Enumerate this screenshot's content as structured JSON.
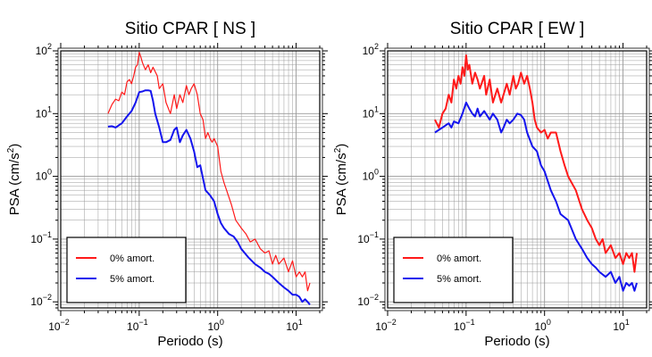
{
  "chart_data": [
    {
      "type": "line",
      "title": "Sitio CPAR [ NS ]",
      "xlabel": "Periodo (s)",
      "ylabel_main": "PSA (cm/s",
      "ylabel_sup": "2",
      "ylabel_close": ")",
      "xscale": "log",
      "yscale": "log",
      "xlim": [
        0.01,
        20
      ],
      "ylim": [
        0.008,
        100
      ],
      "grid": true,
      "legend_placement": "bottom-left",
      "x_ticks": [
        {
          "value": 0.01,
          "base": "10",
          "exp": "−2"
        },
        {
          "value": 0.1,
          "base": "10",
          "exp": "−1"
        },
        {
          "value": 1,
          "base": "10",
          "exp": "0"
        },
        {
          "value": 10,
          "base": "10",
          "exp": "1"
        }
      ],
      "y_ticks": [
        {
          "value": 0.01,
          "base": "10",
          "exp": "−2"
        },
        {
          "value": 0.1,
          "base": "10",
          "exp": "−1"
        },
        {
          "value": 1,
          "base": "10",
          "exp": "0"
        },
        {
          "value": 10,
          "base": "10",
          "exp": "1"
        },
        {
          "value": 100,
          "base": "10",
          "exp": "2"
        }
      ],
      "series": [
        {
          "name": "0% amort.",
          "color": "#ff1a1a",
          "x": [
            0.04,
            0.045,
            0.05,
            0.055,
            0.06,
            0.065,
            0.07,
            0.075,
            0.08,
            0.085,
            0.09,
            0.095,
            0.1,
            0.105,
            0.11,
            0.12,
            0.13,
            0.14,
            0.15,
            0.17,
            0.18,
            0.2,
            0.22,
            0.25,
            0.28,
            0.3,
            0.33,
            0.36,
            0.4,
            0.43,
            0.46,
            0.5,
            0.55,
            0.6,
            0.65,
            0.7,
            0.75,
            0.8,
            0.85,
            0.9,
            1.0,
            1.1,
            1.2,
            1.3,
            1.5,
            1.7,
            2.0,
            2.3,
            2.6,
            3.0,
            3.5,
            4.0,
            4.5,
            5.0,
            5.5,
            6.0,
            7.0,
            8.0,
            9.0,
            10.0,
            11.0,
            12.0,
            13.0,
            14.0,
            15.0
          ],
          "y": [
            10,
            14,
            17,
            16,
            22,
            20,
            32,
            35,
            30,
            40,
            55,
            60,
            95,
            80,
            65,
            50,
            60,
            45,
            55,
            40,
            25,
            30,
            15,
            10,
            20,
            12,
            20,
            15,
            28,
            20,
            25,
            30,
            20,
            10,
            8,
            4,
            5,
            4,
            3.5,
            4,
            3,
            1.2,
            0.8,
            0.6,
            0.35,
            0.2,
            0.15,
            0.12,
            0.09,
            0.1,
            0.07,
            0.06,
            0.065,
            0.04,
            0.055,
            0.04,
            0.05,
            0.03,
            0.045,
            0.025,
            0.03,
            0.025,
            0.03,
            0.015,
            0.02
          ]
        },
        {
          "name": "5% amort.",
          "color": "#1414ee",
          "x": [
            0.04,
            0.045,
            0.05,
            0.055,
            0.06,
            0.07,
            0.08,
            0.09,
            0.1,
            0.11,
            0.12,
            0.13,
            0.14,
            0.15,
            0.16,
            0.18,
            0.2,
            0.22,
            0.25,
            0.28,
            0.3,
            0.33,
            0.36,
            0.4,
            0.45,
            0.5,
            0.55,
            0.6,
            0.7,
            0.8,
            0.9,
            1.0,
            1.1,
            1.2,
            1.4,
            1.6,
            1.8,
            2.0,
            2.5,
            3.0,
            3.5,
            4.0,
            4.5,
            5.0,
            6.0,
            7.0,
            8.0,
            9.0,
            10.0,
            11.0,
            12.0,
            13.0,
            14.0,
            15.0
          ],
          "y": [
            6.2,
            6.3,
            6.0,
            6.5,
            7.0,
            9.0,
            11.0,
            15.0,
            22.0,
            22.5,
            23.5,
            23.5,
            23.0,
            16.0,
            10.0,
            6.0,
            3.5,
            3.5,
            3.8,
            5.5,
            6.0,
            3.5,
            4.5,
            5.5,
            4.0,
            2.5,
            1.4,
            1.5,
            0.6,
            0.5,
            0.4,
            0.25,
            0.18,
            0.15,
            0.12,
            0.11,
            0.09,
            0.07,
            0.05,
            0.04,
            0.035,
            0.03,
            0.028,
            0.025,
            0.02,
            0.017,
            0.015,
            0.013,
            0.013,
            0.012,
            0.01,
            0.011,
            0.01,
            0.009
          ]
        }
      ]
    },
    {
      "type": "line",
      "title": "Sitio CPAR [ EW ]",
      "xlabel": "Periodo (s)",
      "ylabel_main": "PSA (cm/s",
      "ylabel_sup": "2",
      "ylabel_close": ")",
      "xscale": "log",
      "yscale": "log",
      "xlim": [
        0.01,
        20
      ],
      "ylim": [
        0.008,
        100
      ],
      "grid": true,
      "legend_placement": "bottom-left",
      "x_ticks": [
        {
          "value": 0.01,
          "base": "10",
          "exp": "−2"
        },
        {
          "value": 0.1,
          "base": "10",
          "exp": "−1"
        },
        {
          "value": 1,
          "base": "10",
          "exp": "0"
        },
        {
          "value": 10,
          "base": "10",
          "exp": "1"
        }
      ],
      "y_ticks": [
        {
          "value": 0.01,
          "base": "10",
          "exp": "−2"
        },
        {
          "value": 0.1,
          "base": "10",
          "exp": "−1"
        },
        {
          "value": 1,
          "base": "10",
          "exp": "0"
        },
        {
          "value": 10,
          "base": "10",
          "exp": "1"
        },
        {
          "value": 100,
          "base": "10",
          "exp": "2"
        }
      ],
      "series": [
        {
          "name": "0% amort.",
          "color": "#ff1a1a",
          "x": [
            0.04,
            0.045,
            0.05,
            0.055,
            0.06,
            0.065,
            0.07,
            0.075,
            0.08,
            0.085,
            0.09,
            0.095,
            0.1,
            0.105,
            0.11,
            0.12,
            0.13,
            0.14,
            0.15,
            0.17,
            0.18,
            0.2,
            0.22,
            0.25,
            0.28,
            0.3,
            0.33,
            0.36,
            0.4,
            0.43,
            0.46,
            0.5,
            0.55,
            0.6,
            0.65,
            0.7,
            0.75,
            0.8,
            0.9,
            1.0,
            1.1,
            1.2,
            1.4,
            1.6,
            1.8,
            2.0,
            2.5,
            3.0,
            3.5,
            4.0,
            4.5,
            5.0,
            5.5,
            6.0,
            7.0,
            8.0,
            9.0,
            10.0,
            11.0,
            12.0,
            13.0,
            14.0,
            15.0
          ],
          "y": [
            8,
            6,
            10,
            12,
            20,
            15,
            35,
            25,
            40,
            30,
            55,
            40,
            85,
            50,
            60,
            30,
            45,
            35,
            25,
            40,
            20,
            35,
            15,
            25,
            15,
            20,
            30,
            20,
            40,
            25,
            30,
            45,
            30,
            40,
            25,
            15,
            8,
            6,
            5,
            5.5,
            4,
            5,
            5,
            2.5,
            1.5,
            1.0,
            0.6,
            0.3,
            0.2,
            0.15,
            0.1,
            0.08,
            0.1,
            0.06,
            0.08,
            0.05,
            0.06,
            0.04,
            0.06,
            0.05,
            0.06,
            0.03,
            0.06
          ]
        },
        {
          "name": "5% amort.",
          "color": "#1414ee",
          "x": [
            0.04,
            0.045,
            0.05,
            0.055,
            0.06,
            0.065,
            0.07,
            0.08,
            0.09,
            0.1,
            0.11,
            0.12,
            0.13,
            0.14,
            0.15,
            0.17,
            0.2,
            0.22,
            0.25,
            0.28,
            0.3,
            0.33,
            0.36,
            0.4,
            0.45,
            0.5,
            0.55,
            0.6,
            0.7,
            0.8,
            0.9,
            1.0,
            1.2,
            1.4,
            1.6,
            2.0,
            2.5,
            3.0,
            3.5,
            4.0,
            4.5,
            5.0,
            6.0,
            7.0,
            8.0,
            9.0,
            10.0,
            11.0,
            12.0,
            13.0,
            14.0,
            15.0
          ],
          "y": [
            5.0,
            5.5,
            6.0,
            6.5,
            7.0,
            6.0,
            7.5,
            7.0,
            10.0,
            15.0,
            12.0,
            10.0,
            9.0,
            12.0,
            9.0,
            11.0,
            8.0,
            10.0,
            8.0,
            5.0,
            6.0,
            8.0,
            7.0,
            8.0,
            10.0,
            9.5,
            8.0,
            5.0,
            3.0,
            2.5,
            1.5,
            1.2,
            0.6,
            0.4,
            0.25,
            0.2,
            0.1,
            0.07,
            0.05,
            0.04,
            0.035,
            0.03,
            0.025,
            0.03,
            0.02,
            0.025,
            0.015,
            0.02,
            0.018,
            0.02,
            0.015,
            0.02
          ]
        }
      ]
    }
  ]
}
